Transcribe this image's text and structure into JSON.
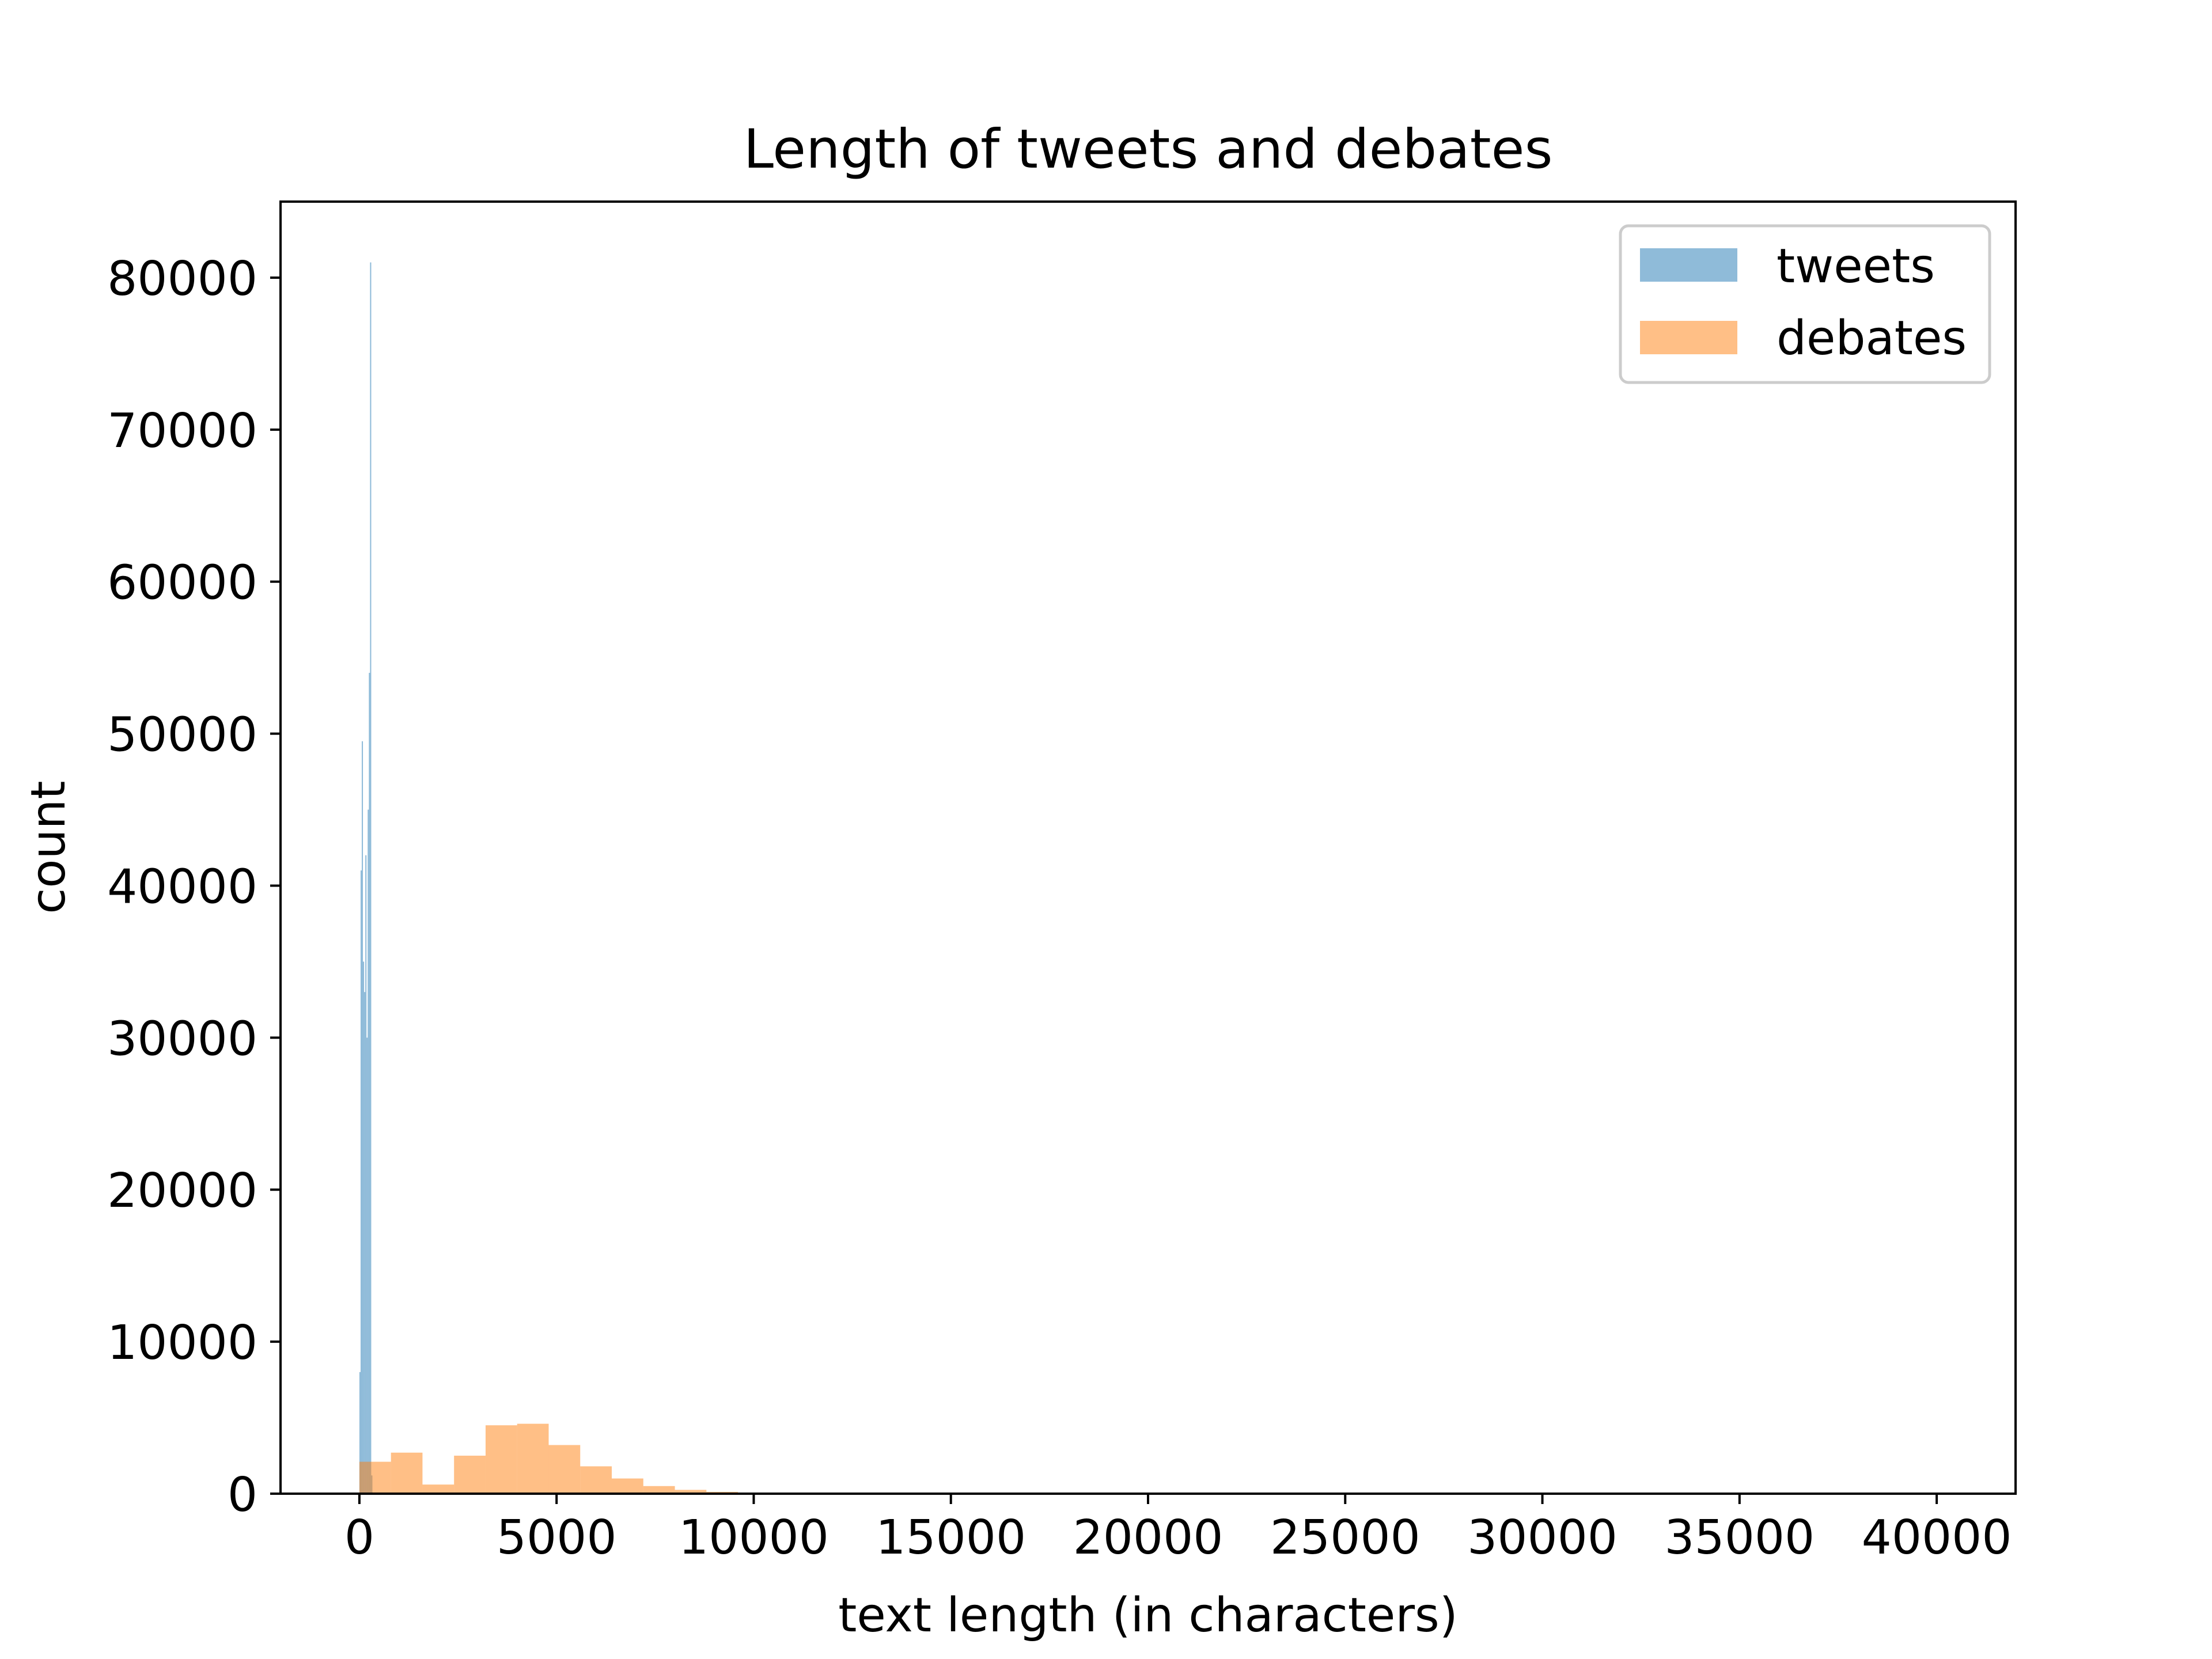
{
  "chart_data": {
    "type": "bar",
    "title": "Length of tweets and debates",
    "xlabel": "text length (in characters)",
    "ylabel": "count",
    "xlim": [
      -2000,
      42000
    ],
    "ylim": [
      0,
      85000
    ],
    "xticks": [
      0,
      5000,
      10000,
      15000,
      20000,
      25000,
      30000,
      35000,
      40000
    ],
    "xtick_labels": [
      "0",
      "5000",
      "10000",
      "15000",
      "20000",
      "25000",
      "30000",
      "35000",
      "40000"
    ],
    "yticks": [
      0,
      10000,
      20000,
      30000,
      40000,
      50000,
      60000,
      70000,
      80000
    ],
    "ytick_labels": [
      "0",
      "10000",
      "20000",
      "30000",
      "40000",
      "50000",
      "60000",
      "70000",
      "80000"
    ],
    "grid": false,
    "legend_position": "top-right",
    "series": [
      {
        "name": "tweets",
        "color": "#1f77b4",
        "alpha": 0.5,
        "bins": [
          [
            0,
            30,
            8000
          ],
          [
            30,
            60,
            41000
          ],
          [
            60,
            90,
            49500
          ],
          [
            90,
            120,
            35000
          ],
          [
            120,
            150,
            33000
          ],
          [
            150,
            180,
            42000
          ],
          [
            180,
            210,
            30000
          ],
          [
            210,
            240,
            45000
          ],
          [
            240,
            270,
            54000
          ],
          [
            270,
            300,
            81000
          ],
          [
            300,
            330,
            1200
          ]
        ]
      },
      {
        "name": "debates",
        "color": "#ff7f0e",
        "alpha": 0.5,
        "bins": [
          [
            0,
            800,
            2100
          ],
          [
            800,
            1600,
            2700
          ],
          [
            1600,
            2400,
            600
          ],
          [
            2400,
            3200,
            2500
          ],
          [
            3200,
            4000,
            4500
          ],
          [
            4000,
            4800,
            4600
          ],
          [
            4800,
            5600,
            3200
          ],
          [
            5600,
            6400,
            1800
          ],
          [
            6400,
            7200,
            1000
          ],
          [
            7200,
            8000,
            500
          ],
          [
            8000,
            8800,
            250
          ],
          [
            8800,
            9600,
            120
          ],
          [
            9600,
            10400,
            50
          ]
        ]
      }
    ]
  }
}
